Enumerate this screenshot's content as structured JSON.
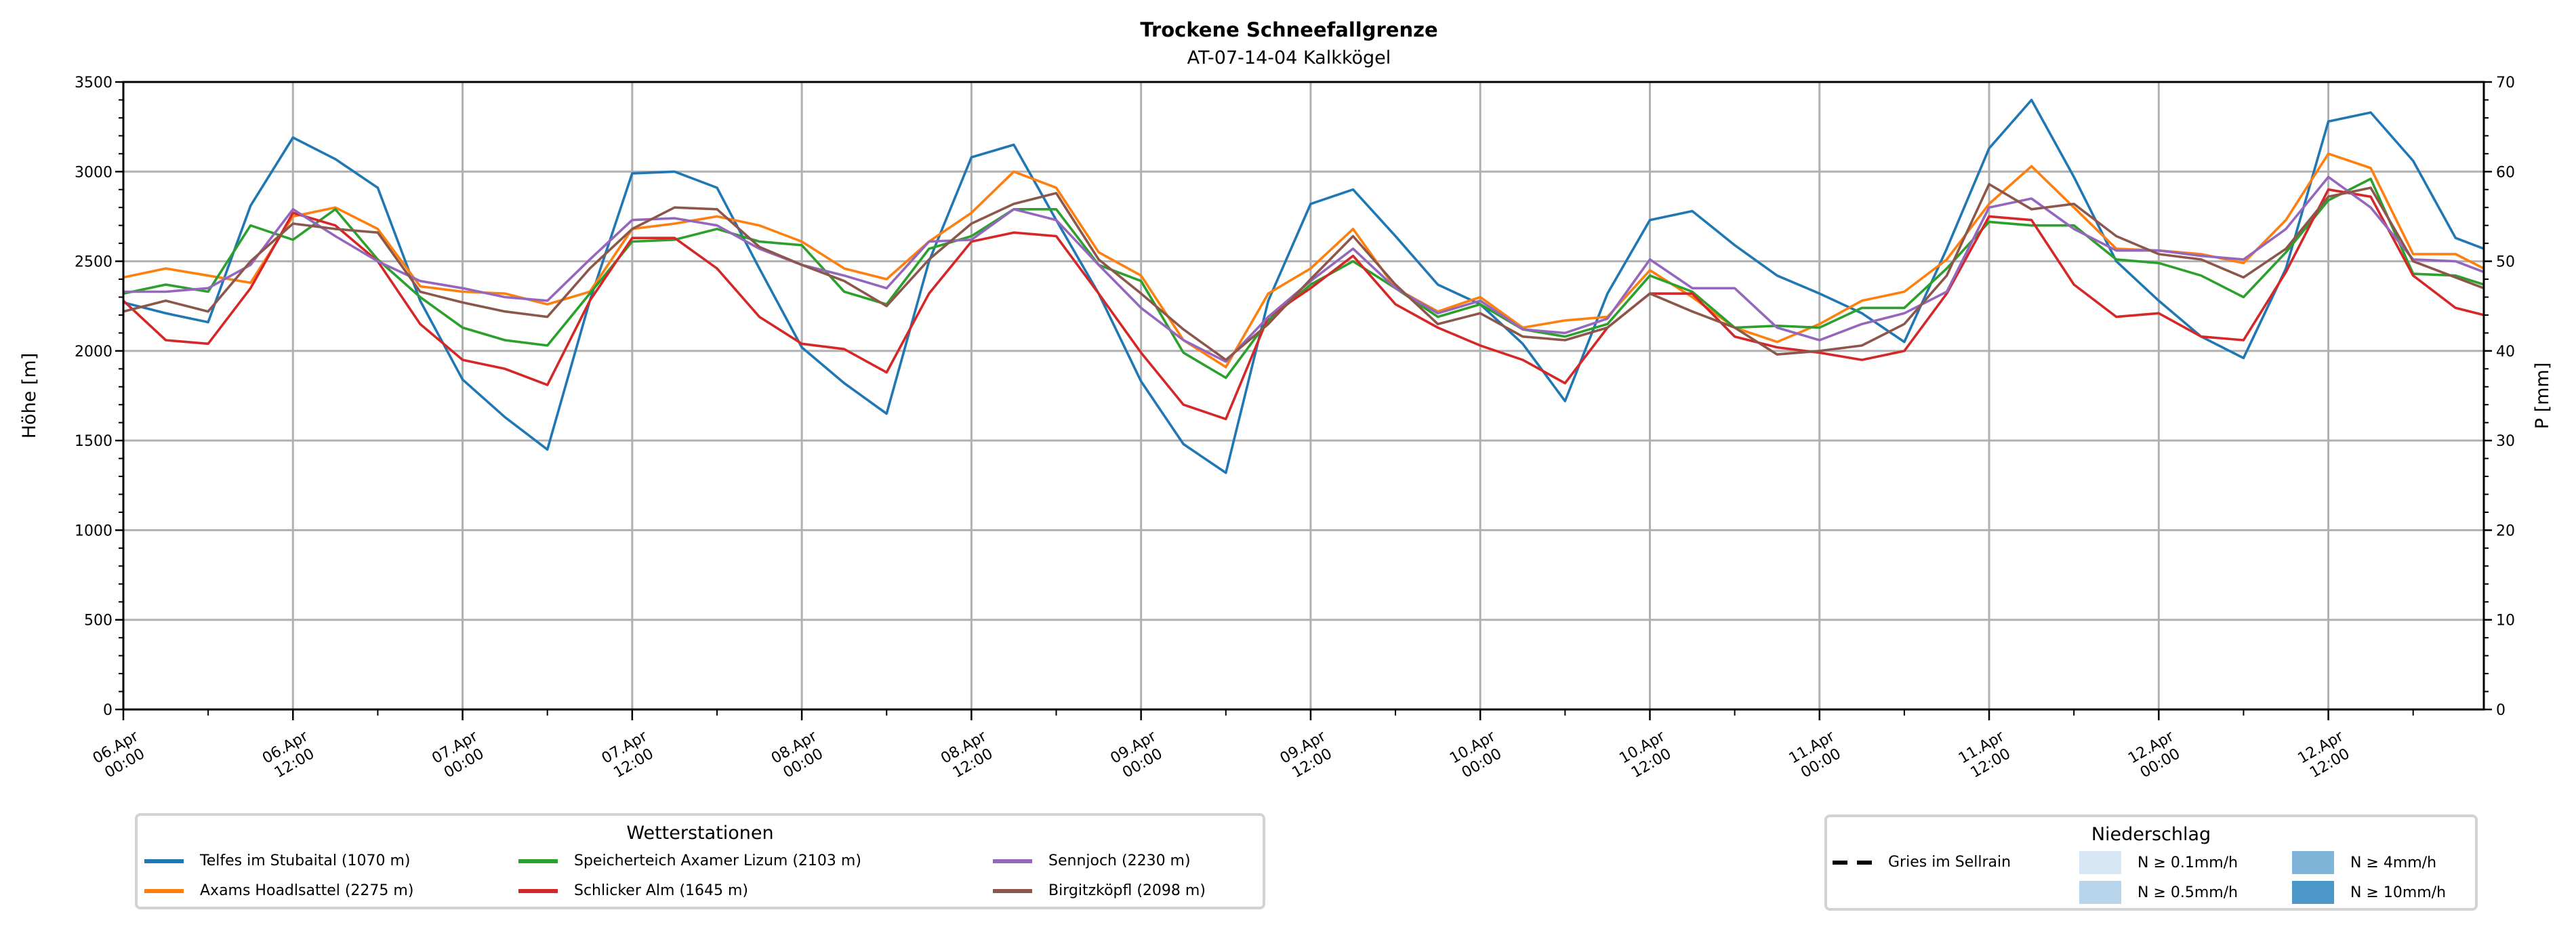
{
  "chart_data": {
    "type": "line",
    "title": "Trockene Schneefallgrenze",
    "subtitle": "AT-07-14-04 Kalkkögel",
    "ylabel": "Höhe [m]",
    "ylabel_right": "P [mm]",
    "ylim": [
      0,
      3500
    ],
    "ylim_right": [
      0,
      70
    ],
    "xlim_hours": [
      0,
      167
    ],
    "grid": true,
    "yticks": [
      "0",
      "500",
      "1000",
      "1500",
      "2000",
      "2500",
      "3000",
      "3500"
    ],
    "yticks_right": [
      "0",
      "10",
      "20",
      "30",
      "40",
      "50",
      "60",
      "70"
    ],
    "xticks": [
      {
        "h": 0,
        "d": "06.Apr",
        "t": "00:00"
      },
      {
        "h": 12,
        "d": "06.Apr",
        "t": "12:00"
      },
      {
        "h": 24,
        "d": "07.Apr",
        "t": "00:00"
      },
      {
        "h": 36,
        "d": "07.Apr",
        "t": "12:00"
      },
      {
        "h": 48,
        "d": "08.Apr",
        "t": "00:00"
      },
      {
        "h": 60,
        "d": "08.Apr",
        "t": "12:00"
      },
      {
        "h": 72,
        "d": "09.Apr",
        "t": "00:00"
      },
      {
        "h": 84,
        "d": "09.Apr",
        "t": "12:00"
      },
      {
        "h": 96,
        "d": "10.Apr",
        "t": "00:00"
      },
      {
        "h": 108,
        "d": "10.Apr",
        "t": "12:00"
      },
      {
        "h": 120,
        "d": "11.Apr",
        "t": "00:00"
      },
      {
        "h": 132,
        "d": "11.Apr",
        "t": "12:00"
      },
      {
        "h": 144,
        "d": "12.Apr",
        "t": "00:00"
      },
      {
        "h": 156,
        "d": "12.Apr",
        "t": "12:00"
      }
    ],
    "x_hours": [
      0,
      3,
      6,
      9,
      12,
      15,
      18,
      21,
      24,
      27,
      30,
      33,
      36,
      39,
      42,
      45,
      48,
      51,
      54,
      57,
      60,
      63,
      66,
      69,
      72,
      75,
      78,
      81,
      84,
      87,
      90,
      93,
      96,
      99,
      102,
      105,
      108,
      111,
      114,
      117,
      120,
      123,
      126,
      129,
      132,
      135,
      138,
      141,
      144,
      147,
      150,
      153,
      156,
      159,
      162,
      165,
      167
    ],
    "series": [
      {
        "name": "Telfes im Stubaital (1070 m)",
        "color": "#1f77b4",
        "values": [
          2270,
          2210,
          2160,
          2810,
          3190,
          3070,
          2910,
          2280,
          1840,
          1630,
          1450,
          2280,
          2990,
          3000,
          2910,
          2460,
          2020,
          1820,
          1650,
          2500,
          3080,
          3150,
          2730,
          2320,
          1830,
          1480,
          1320,
          2280,
          2820,
          2900,
          2640,
          2370,
          2260,
          2040,
          1720,
          2320,
          2730,
          2780,
          2590,
          2420,
          2320,
          2210,
          2050,
          2570,
          3130,
          3400,
          2970,
          2500,
          2280,
          2080,
          1960,
          2460,
          3280,
          3330,
          3060,
          2630,
          2570
        ]
      },
      {
        "name": "Axams Hoadlsattel (2275 m)",
        "color": "#ff7f0e",
        "values": [
          2410,
          2460,
          2420,
          2380,
          2750,
          2800,
          2680,
          2360,
          2330,
          2320,
          2260,
          2330,
          2680,
          2710,
          2750,
          2700,
          2610,
          2460,
          2400,
          2610,
          2770,
          3000,
          2910,
          2550,
          2420,
          2060,
          1910,
          2320,
          2460,
          2680,
          2350,
          2220,
          2300,
          2130,
          2170,
          2190,
          2450,
          2300,
          2130,
          2050,
          2150,
          2280,
          2330,
          2510,
          2820,
          3030,
          2800,
          2570,
          2560,
          2540,
          2490,
          2730,
          3100,
          3020,
          2540,
          2540,
          2460
        ]
      },
      {
        "name": "Speicherteich Axamer Lizum (2103 m)",
        "color": "#2ca02c",
        "values": [
          2320,
          2370,
          2330,
          2700,
          2620,
          2790,
          2510,
          2300,
          2130,
          2060,
          2030,
          2320,
          2610,
          2620,
          2680,
          2610,
          2590,
          2330,
          2260,
          2570,
          2640,
          2790,
          2790,
          2480,
          2390,
          1990,
          1850,
          2170,
          2370,
          2500,
          2350,
          2190,
          2260,
          2120,
          2080,
          2150,
          2420,
          2330,
          2130,
          2140,
          2130,
          2240,
          2240,
          2460,
          2720,
          2700,
          2700,
          2510,
          2490,
          2420,
          2300,
          2550,
          2840,
          2960,
          2430,
          2420,
          2370
        ]
      },
      {
        "name": "Schlicker Alm (1645 m)",
        "color": "#d62728",
        "values": [
          2280,
          2060,
          2040,
          2350,
          2770,
          2700,
          2500,
          2150,
          1950,
          1900,
          1810,
          2280,
          2630,
          2630,
          2460,
          2190,
          2040,
          2010,
          1880,
          2320,
          2610,
          2660,
          2640,
          2320,
          1990,
          1700,
          1620,
          2190,
          2350,
          2530,
          2260,
          2130,
          2030,
          1950,
          1820,
          2130,
          2320,
          2320,
          2080,
          2020,
          1990,
          1950,
          2000,
          2320,
          2750,
          2730,
          2370,
          2190,
          2210,
          2080,
          2060,
          2440,
          2900,
          2860,
          2420,
          2240,
          2200
        ]
      },
      {
        "name": "Sennjoch (2230 m)",
        "color": "#9467bd",
        "values": [
          2330,
          2330,
          2350,
          2480,
          2790,
          2640,
          2500,
          2390,
          2350,
          2300,
          2280,
          2510,
          2730,
          2740,
          2700,
          2570,
          2480,
          2420,
          2350,
          2610,
          2620,
          2790,
          2730,
          2480,
          2240,
          2060,
          1940,
          2190,
          2390,
          2570,
          2350,
          2210,
          2280,
          2120,
          2100,
          2180,
          2510,
          2350,
          2350,
          2130,
          2060,
          2150,
          2210,
          2330,
          2800,
          2850,
          2680,
          2560,
          2560,
          2530,
          2510,
          2680,
          2970,
          2800,
          2510,
          2500,
          2440
        ]
      },
      {
        "name": "Birgitzköpfl (2098 m)",
        "color": "#8c564b",
        "values": [
          2220,
          2280,
          2220,
          2500,
          2710,
          2680,
          2660,
          2330,
          2270,
          2220,
          2190,
          2460,
          2680,
          2800,
          2790,
          2580,
          2480,
          2390,
          2250,
          2510,
          2710,
          2820,
          2880,
          2510,
          2320,
          2120,
          1950,
          2150,
          2400,
          2640,
          2370,
          2150,
          2210,
          2080,
          2060,
          2130,
          2320,
          2220,
          2130,
          1980,
          2000,
          2030,
          2150,
          2420,
          2930,
          2790,
          2820,
          2640,
          2540,
          2510,
          2410,
          2570,
          2860,
          2910,
          2500,
          2410,
          2350
        ]
      }
    ],
    "legend_stations": {
      "title": "Wetterstationen",
      "placement": "bottom-left"
    },
    "legend_precip": {
      "title": "Niederschlag",
      "placement": "bottom-right",
      "line_label": "Gries im Sellrain",
      "items": [
        {
          "label": "N ≥ 0.1mm/h",
          "color": "#d6e6f4"
        },
        {
          "label": "N ≥ 0.5mm/h",
          "color": "#b8d4ea"
        },
        {
          "label": "N ≥ 4mm/h",
          "color": "#7fb5d9"
        },
        {
          "label": "N ≥ 10mm/h",
          "color": "#4b98c9"
        }
      ]
    }
  }
}
